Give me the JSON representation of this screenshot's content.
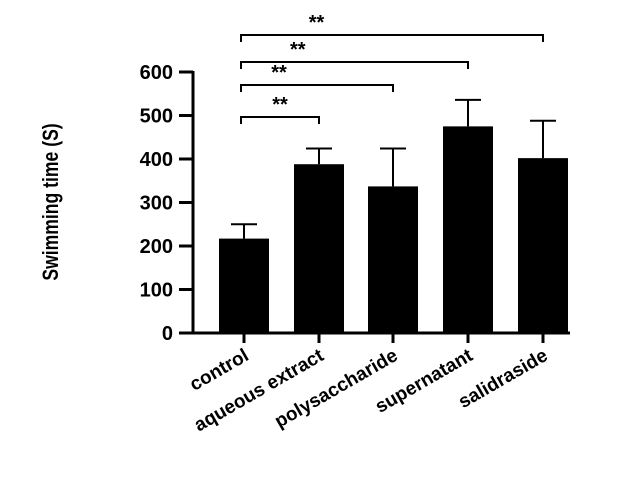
{
  "chart_data": {
    "type": "bar",
    "title": "",
    "xlabel": "",
    "ylabel": "Swimming time (S)",
    "ylim": [
      0,
      600
    ],
    "yticks": [
      0,
      100,
      200,
      300,
      400,
      500,
      600
    ],
    "categories": [
      "control",
      "aqueous extract",
      "polysaccharide",
      "supernatant",
      "salidraside"
    ],
    "values": [
      217,
      388,
      337,
      475,
      402
    ],
    "error_upper": [
      250,
      424,
      424,
      536,
      488
    ],
    "bar_color": "#000000",
    "grid": false,
    "significance": [
      {
        "from": "control",
        "to": "aqueous extract",
        "label": "**"
      },
      {
        "from": "control",
        "to": "polysaccharide",
        "label": "**"
      },
      {
        "from": "control",
        "to": "supernatant",
        "label": "**"
      },
      {
        "from": "control",
        "to": "salidraside",
        "label": "**"
      }
    ]
  }
}
